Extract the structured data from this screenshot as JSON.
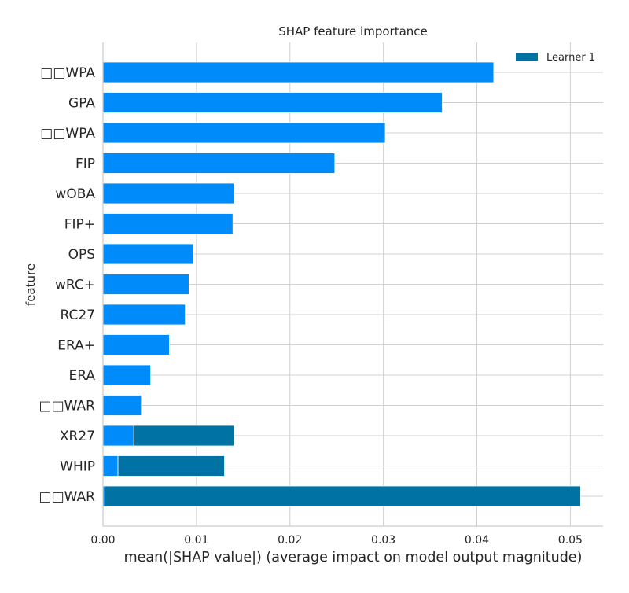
{
  "chart_data": {
    "type": "bar",
    "orientation": "horizontal",
    "title": "SHAP feature importance",
    "xlabel": "mean(|SHAP value|) (average impact on model output magnitude)",
    "ylabel": "feature",
    "xlim": [
      0,
      0.0535
    ],
    "xticks": [
      "0.00",
      "0.01",
      "0.02",
      "0.03",
      "0.04",
      "0.05"
    ],
    "xtick_values": [
      0,
      0.01,
      0.02,
      0.03,
      0.04,
      0.05
    ],
    "grid": true,
    "legend_position": "top-right",
    "categories": [
      "□□WPA",
      "GPA",
      "□□WPA",
      "FIP",
      "wOBA",
      "FIP+",
      "OPS",
      "wRC+",
      "RC27",
      "ERA+",
      "ERA",
      "□□WAR",
      "XR27",
      "WHIP",
      "□□WAR"
    ],
    "series": [
      {
        "color": "#008bfb",
        "values": [
          0.0418,
          0.0363,
          0.0302,
          0.0248,
          0.014,
          0.0139,
          0.0097,
          0.0092,
          0.0088,
          0.0071,
          0.0051,
          0.0041,
          0.0033,
          0.0016,
          0.0002
        ]
      },
      {
        "name": "Learner 1",
        "color": "#0072a3",
        "values": [
          0.0,
          0.0,
          0.0,
          0.0,
          0.0,
          0.0,
          0.0,
          0.0,
          0.0,
          0.0,
          0.0,
          0.0,
          0.0107,
          0.0114,
          0.0509
        ]
      }
    ]
  }
}
